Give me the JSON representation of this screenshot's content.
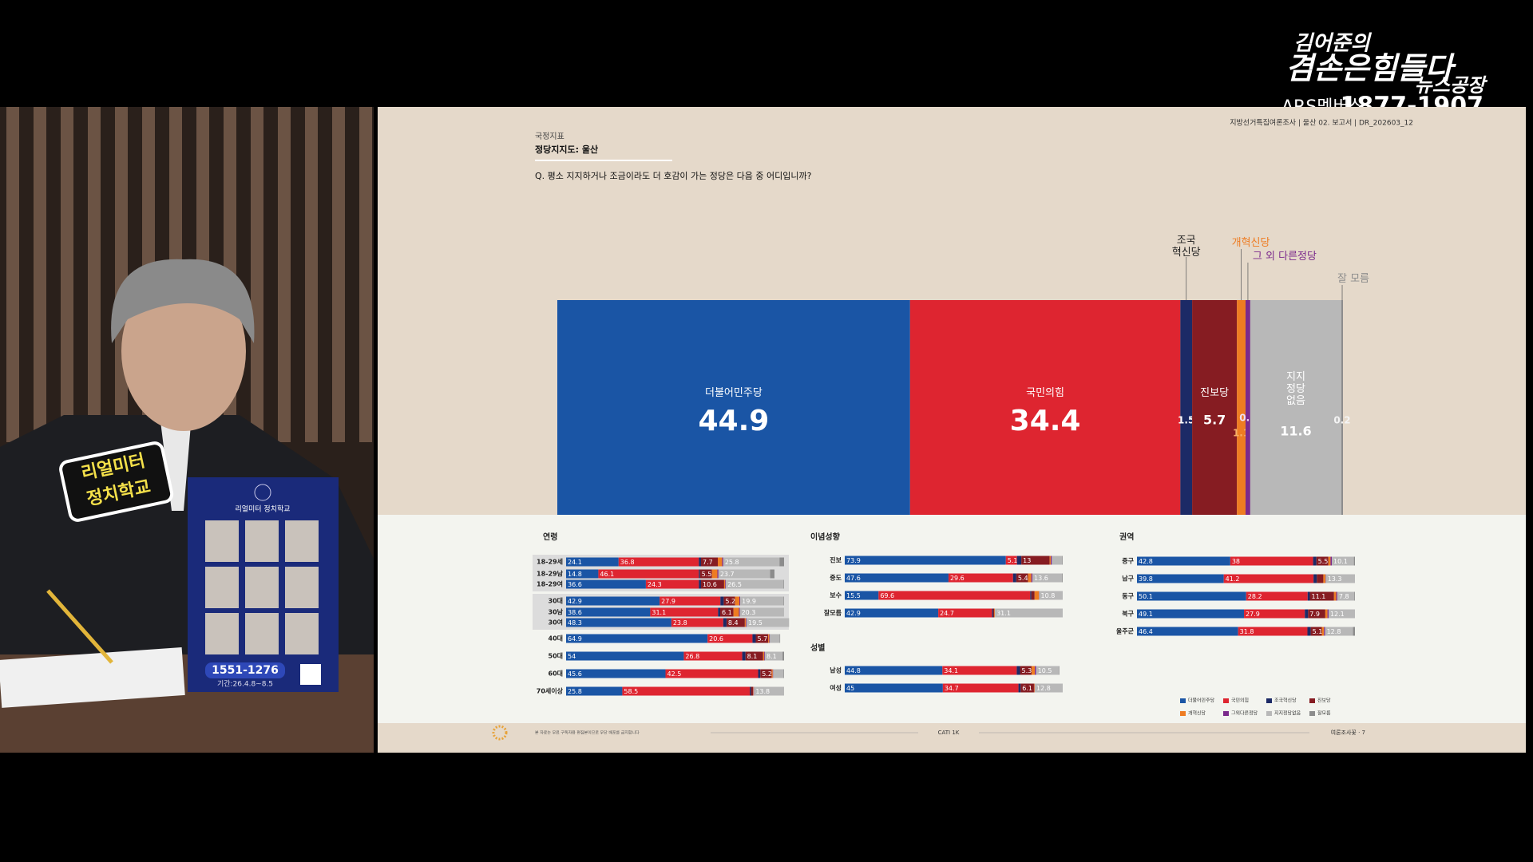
{
  "overlay": {
    "logo": [
      "김어준의",
      "겸손은힘들다",
      "뉴스공장"
    ],
    "membership": "ARS멤버십",
    "phone": "1877-1907"
  },
  "camera": {
    "sticker": [
      "리얼미터",
      "정치학교"
    ],
    "card_title": "리얼미터 정치학교",
    "card_phone": "1551-1276",
    "card_period": "기간:26.4.8~8.5"
  },
  "slide": {
    "header": "지방선거특집여론조사 | 울산 02. 보고서 | DR_202603_12",
    "section": "국정지표",
    "subtitle": "정당지지도: 울산",
    "question": "Q. 평소 지지하거나 조금이라도 더 호감이 가는 정당은 다음 중 어디입니까?",
    "footnote": "본 자료는 무료 구독자용 편집본이므로 무단 배포를 금지합니다",
    "method": "CATI 1K",
    "brand": "여론조사꽃 · 7"
  },
  "chart_data": [
    {
      "type": "bar",
      "orientation": "horizontal",
      "stacked": true,
      "xlim": [
        0,
        100
      ],
      "series": [
        {
          "name": "더불어민주당",
          "color": "#1a55a5",
          "values": [
            44.9
          ]
        },
        {
          "name": "국민의힘",
          "color": "#de2530",
          "values": [
            34.4
          ]
        },
        {
          "name": "조국\n혁신당",
          "color": "#1c2a66",
          "values": [
            1.5
          ]
        },
        {
          "name": "진보당",
          "color": "#861c22",
          "values": [
            5.7
          ]
        },
        {
          "name": "개혁신당",
          "color": "#ee7c22",
          "values": [
            1.1
          ]
        },
        {
          "name": "그 외 다른정당",
          "color": "#7b2a8c",
          "values": [
            0.6
          ]
        },
        {
          "name": "지지\n정당\n없음",
          "color": "#b8b8b8",
          "values": [
            11.6
          ]
        },
        {
          "name": "잘 모름",
          "color": "#8c8c8c",
          "values": [
            0.2
          ]
        }
      ]
    },
    {
      "type": "bar",
      "orientation": "horizontal",
      "stacked": true,
      "title": "연령",
      "xlim": [
        0,
        100
      ],
      "categories": [
        "18-29세",
        "18-29남",
        "18-29여",
        "30대",
        "30남",
        "30여",
        "40대",
        "50대",
        "60대",
        "70세이상"
      ],
      "series": [
        {
          "values": [
            24.1,
            14.8,
            36.6,
            42.9,
            38.6,
            48.3,
            64.9,
            54.0,
            45.6,
            25.8
          ]
        },
        {
          "values": [
            36.8,
            46.1,
            24.3,
            27.9,
            31.1,
            23.8,
            20.6,
            26.8,
            42.5,
            58.5
          ]
        },
        {
          "values": [
            1.0,
            0.5,
            1.0,
            1.5,
            1.0,
            1.5,
            1.5,
            1.5,
            1.0,
            0.5
          ]
        },
        {
          "values": [
            7.7,
            5.5,
            10.6,
            5.2,
            6.1,
            8.4,
            5.7,
            8.1,
            5.2,
            1.0
          ]
        },
        {
          "values": [
            2.0,
            2.5,
            0.5,
            2.0,
            2.5,
            0.5,
            0.5,
            0.5,
            0.5,
            0.2
          ]
        },
        {
          "values": [
            0.5,
            0.5,
            0.3,
            0.4,
            0.4,
            0.3,
            0.3,
            0.3,
            0.2,
            0.2
          ]
        },
        {
          "values": [
            25.8,
            23.7,
            26.5,
            19.9,
            20.3,
            19.5,
            4.5,
            8.1,
            4.8,
            13.8
          ]
        },
        {
          "values": [
            2.1,
            2.0,
            0.2,
            0.2,
            0.0,
            0.0,
            0.2,
            0.7,
            0.2,
            0.0
          ]
        }
      ]
    },
    {
      "type": "bar",
      "orientation": "horizontal",
      "stacked": true,
      "title": "이념성향",
      "xlim": [
        0,
        100
      ],
      "categories": [
        "진보",
        "중도",
        "보수",
        "잘모름"
      ],
      "series": [
        {
          "values": [
            73.9,
            47.6,
            15.5,
            42.9
          ]
        },
        {
          "values": [
            5.1,
            29.6,
            69.6,
            24.7
          ]
        },
        {
          "values": [
            2.0,
            1.5,
            0.5,
            0.5
          ]
        },
        {
          "values": [
            13.0,
            5.4,
            1.5,
            0.5
          ]
        },
        {
          "values": [
            0.5,
            1.5,
            2.0,
            0.3
          ]
        },
        {
          "values": [
            0.5,
            0.5,
            0.1,
            0.0
          ]
        },
        {
          "values": [
            4.8,
            13.6,
            10.8,
            31.1
          ]
        },
        {
          "values": [
            0.2,
            0.3,
            0.0,
            0.0
          ]
        }
      ]
    },
    {
      "type": "bar",
      "orientation": "horizontal",
      "stacked": true,
      "title": "성별",
      "xlim": [
        0,
        100
      ],
      "categories": [
        "남성",
        "여성"
      ],
      "series": [
        {
          "values": [
            44.8,
            45.0
          ]
        },
        {
          "values": [
            34.1,
            34.7
          ]
        },
        {
          "values": [
            1.5,
            1.0
          ]
        },
        {
          "values": [
            5.3,
            6.1
          ]
        },
        {
          "values": [
            1.5,
            0.3
          ]
        },
        {
          "values": [
            0.6,
            0.1
          ]
        },
        {
          "values": [
            10.5,
            12.8
          ]
        },
        {
          "values": [
            0.2,
            0.0
          ]
        }
      ]
    },
    {
      "type": "bar",
      "orientation": "horizontal",
      "stacked": true,
      "title": "권역",
      "xlim": [
        0,
        100
      ],
      "categories": [
        "중구",
        "남구",
        "동구",
        "북구",
        "울주군"
      ],
      "series": [
        {
          "values": [
            42.8,
            39.8,
            50.1,
            49.1,
            46.4
          ]
        },
        {
          "values": [
            38.0,
            41.2,
            28.2,
            27.9,
            31.8
          ]
        },
        {
          "values": [
            1.5,
            1.5,
            1.0,
            1.5,
            1.5
          ]
        },
        {
          "values": [
            5.5,
            3.0,
            11.1,
            7.9,
            5.1
          ]
        },
        {
          "values": [
            1.0,
            1.0,
            1.0,
            1.0,
            1.0
          ]
        },
        {
          "values": [
            0.6,
            0.2,
            0.5,
            0.5,
            0.5
          ]
        },
        {
          "values": [
            10.1,
            13.3,
            7.8,
            12.1,
            12.8
          ]
        },
        {
          "values": [
            0.5,
            0.0,
            0.3,
            0.0,
            0.9
          ]
        }
      ],
      "legend": [
        "더불어민주당",
        "국민의힘",
        "조국혁신당",
        "진보당",
        "개혁신당",
        "그외다른정당",
        "지지정당없음",
        "잘모름"
      ]
    }
  ]
}
